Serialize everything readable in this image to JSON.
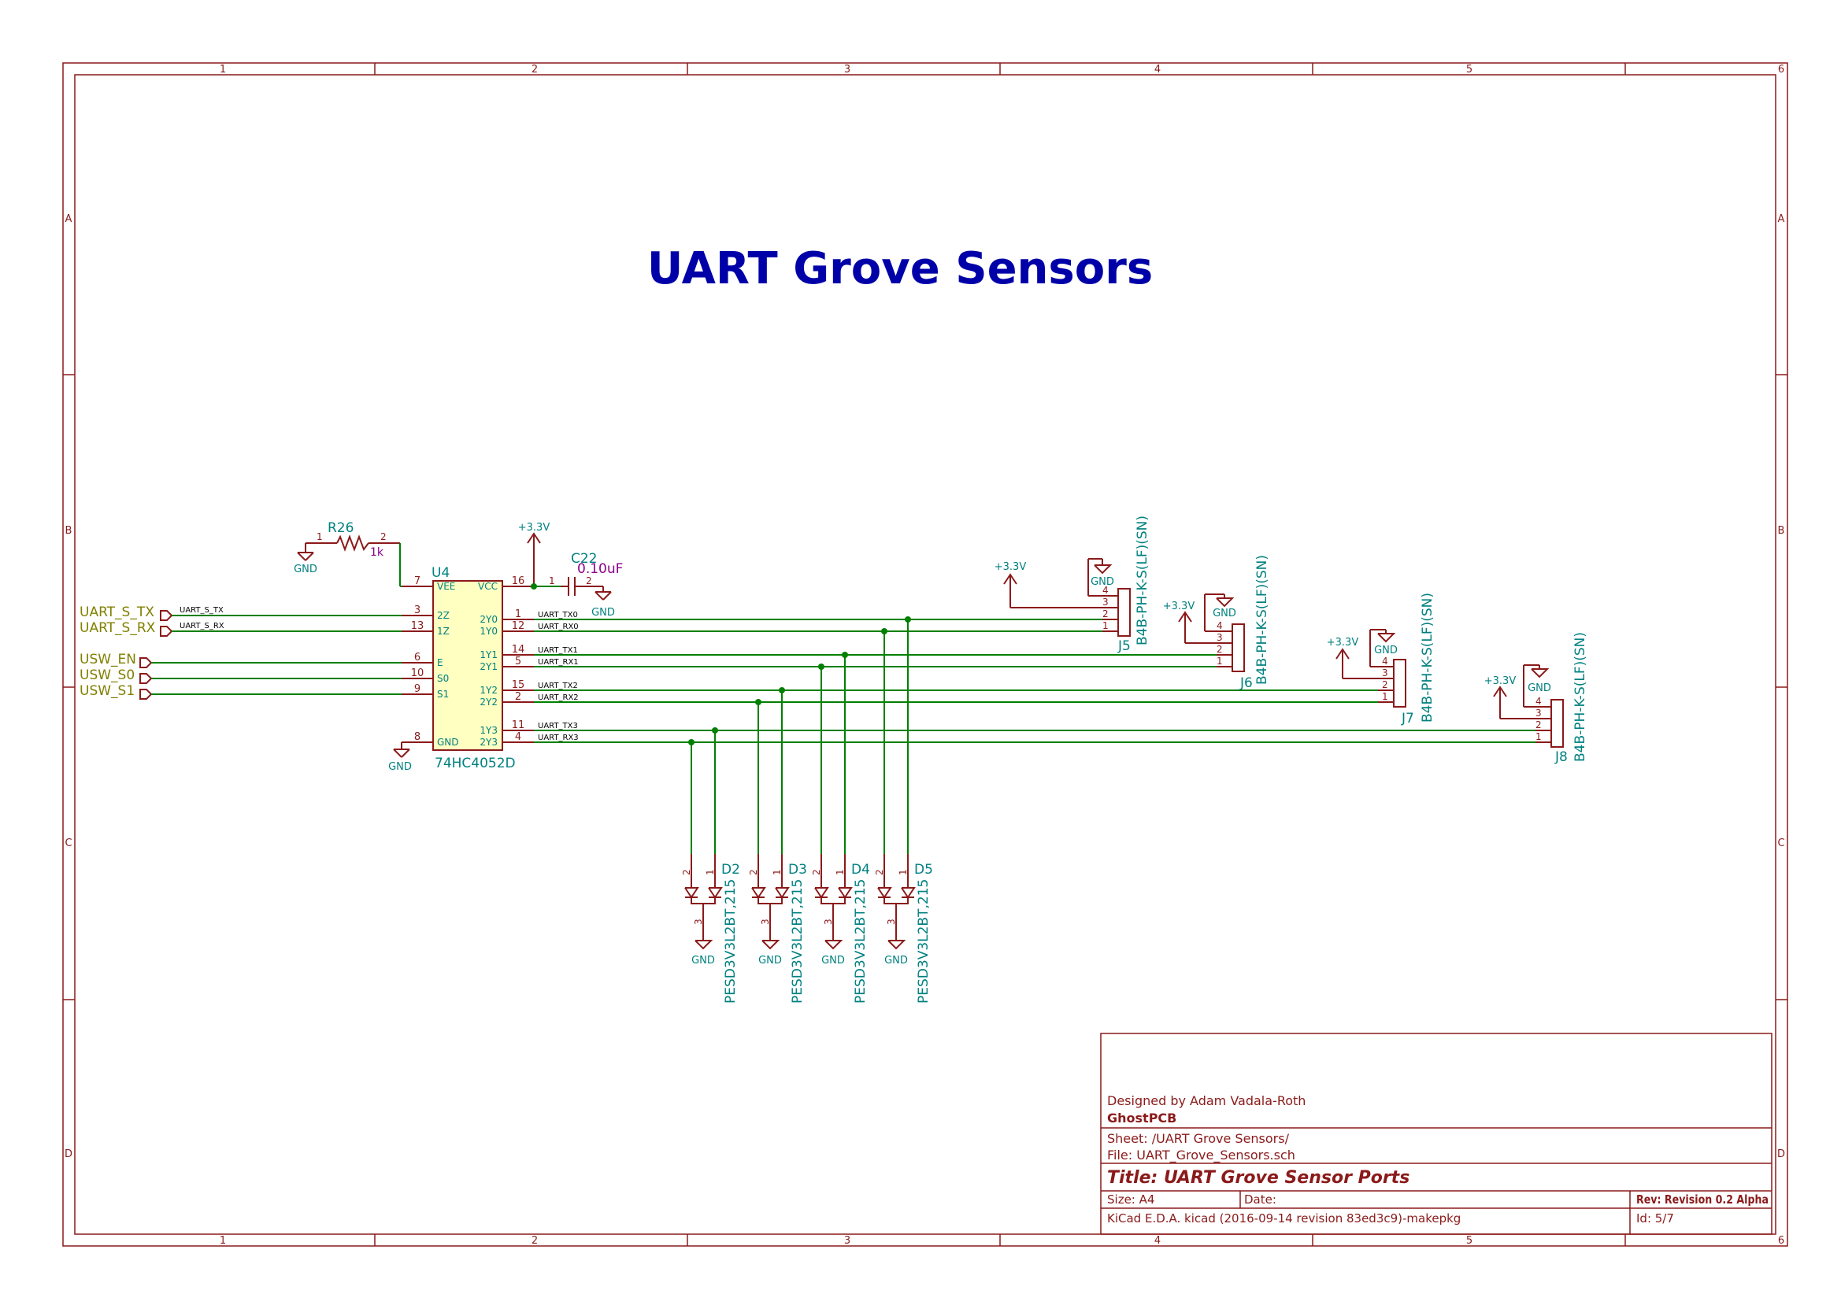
{
  "title_text": "UART Grove Sensors",
  "colors": {
    "frame": "#8b1a1a",
    "wire": "#008000",
    "label_teal": "#008080",
    "hier_label": "#808000",
    "value_purple": "#8b008b",
    "title_blue": "#0000a8",
    "chip_fill": "#ffffc2"
  },
  "frame": {
    "columns": [
      "1",
      "2",
      "3",
      "4",
      "5",
      "6"
    ],
    "rows": [
      "A",
      "B",
      "C",
      "D"
    ]
  },
  "hier_labels": [
    "UART_S_TX",
    "UART_S_RX",
    "USW_EN",
    "USW_S0",
    "USW_S1"
  ],
  "resistor": {
    "ref": "R26",
    "value": "1k",
    "pin1": "1",
    "pin2": "2"
  },
  "power": {
    "v33": "+3.3V",
    "gnd": "GND"
  },
  "capacitor": {
    "ref": "C22",
    "value": "0.10uF",
    "pin1": "1",
    "pin2": "2"
  },
  "mux": {
    "ref": "U4",
    "part": "74HC4052D",
    "left_pins": [
      {
        "num": "7",
        "name": "VEE"
      },
      {
        "num": "3",
        "name": "2Z"
      },
      {
        "num": "13",
        "name": "1Z"
      },
      {
        "num": "6",
        "name": "E"
      },
      {
        "num": "10",
        "name": "S0"
      },
      {
        "num": "9",
        "name": "S1"
      },
      {
        "num": "8",
        "name": "GND"
      }
    ],
    "right_pins": [
      {
        "num": "16",
        "name": "VCC"
      },
      {
        "num": "1",
        "name": "2Y0"
      },
      {
        "num": "12",
        "name": "1Y0"
      },
      {
        "num": "14",
        "name": "1Y1"
      },
      {
        "num": "5",
        "name": "2Y1"
      },
      {
        "num": "15",
        "name": "1Y2"
      },
      {
        "num": "2",
        "name": "2Y2"
      },
      {
        "num": "11",
        "name": "1Y3"
      },
      {
        "num": "4",
        "name": "2Y3"
      }
    ]
  },
  "nets": {
    "in_tx": "UART_S_TX",
    "in_rx": "UART_S_RX",
    "right": [
      "UART_TX0",
      "UART_RX0",
      "UART_TX1",
      "UART_RX1",
      "UART_TX2",
      "UART_RX2",
      "UART_TX3",
      "UART_RX3"
    ]
  },
  "connectors": [
    {
      "ref": "J5",
      "part": "B4B-PH-K-S(LF)(SN)",
      "pins": [
        "4",
        "3",
        "2",
        "1"
      ]
    },
    {
      "ref": "J6",
      "part": "B4B-PH-K-S(LF)(SN)",
      "pins": [
        "4",
        "3",
        "2",
        "1"
      ]
    },
    {
      "ref": "J7",
      "part": "B4B-PH-K-S(LF)(SN)",
      "pins": [
        "4",
        "3",
        "2",
        "1"
      ]
    },
    {
      "ref": "J8",
      "part": "B4B-PH-K-S(LF)(SN)",
      "pins": [
        "4",
        "3",
        "2",
        "1"
      ]
    }
  ],
  "diodes": [
    {
      "ref": "D2",
      "part": "PESD3V3L2BT,215",
      "pins": [
        "2",
        "1",
        "3"
      ]
    },
    {
      "ref": "D3",
      "part": "PESD3V3L2BT,215",
      "pins": [
        "2",
        "1",
        "3"
      ]
    },
    {
      "ref": "D4",
      "part": "PESD3V3L2BT,215",
      "pins": [
        "2",
        "1",
        "3"
      ]
    },
    {
      "ref": "D5",
      "part": "PESD3V3L2BT,215",
      "pins": [
        "2",
        "1",
        "3"
      ]
    }
  ],
  "title_block": {
    "designed_by": "Designed by Adam Vadala-Roth",
    "company": "GhostPCB",
    "sheet": "Sheet: /UART Grove Sensors/",
    "file": "File: UART_Grove_Sensors.sch",
    "title": "Title: UART Grove Sensor Ports",
    "size": "Size: A4",
    "date": "Date:",
    "rev": "Rev: Revision 0.2 Alpha",
    "kicad": "KiCad E.D.A.  kicad (2016-09-14 revision 83ed3c9)-makepkg",
    "id": "Id: 5/7"
  }
}
